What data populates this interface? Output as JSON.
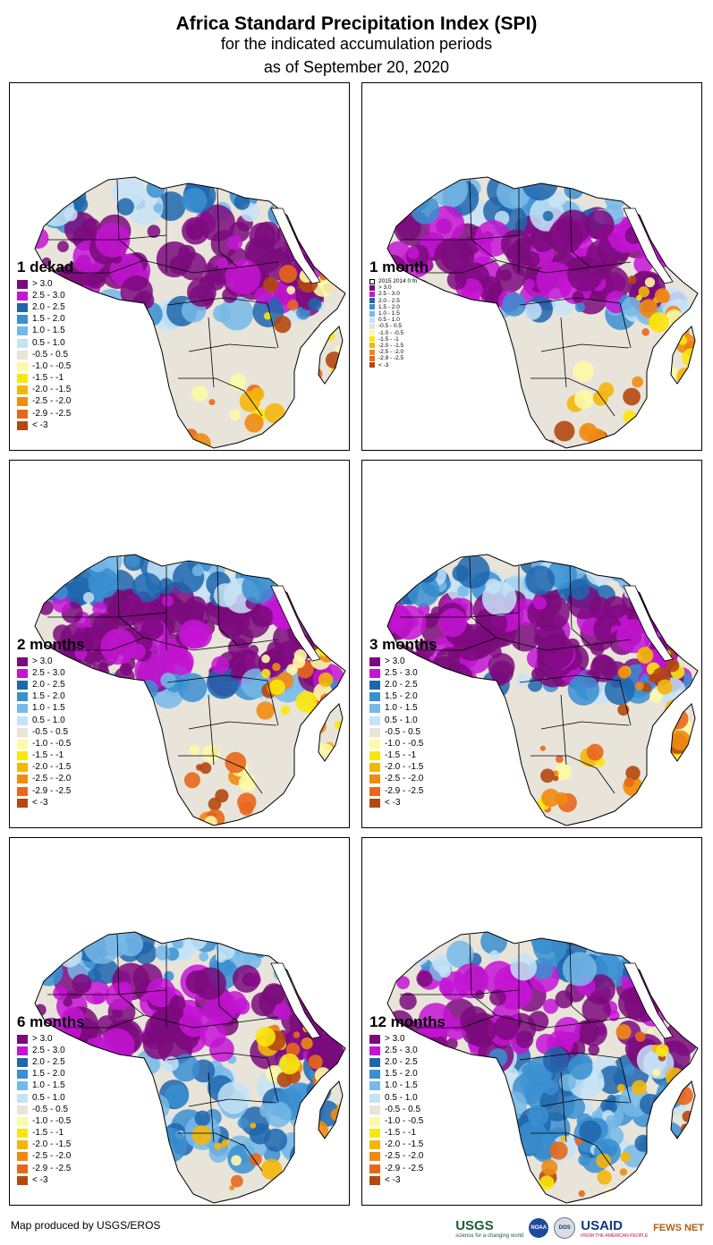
{
  "header": {
    "title": "Africa Standard Precipitation Index (SPI)",
    "subtitle": "for the indicated accumulation periods",
    "date_line": "as of September 20, 2020"
  },
  "colors": {
    "gt3": "#7b0a7c",
    "c25_30": "#c414d4",
    "c20_25": "#1f66ad",
    "c15_20": "#3a8fd0",
    "c10_15": "#76b8e8",
    "c05_10": "#c5e3f6",
    "neutral": "#e8e4da",
    "m05_10": "#fdf9a6",
    "m10_15": "#f9e60e",
    "m15_20": "#f3b60b",
    "m20_25": "#f08b12",
    "m25_29": "#e8671c",
    "lt3": "#b4480f",
    "ocean": "#ffffff",
    "border": "#000000"
  },
  "legend_entries": [
    {
      "label": "> 3.0",
      "color": "#7b0a7c"
    },
    {
      "label": "2.5 - 3.0",
      "color": "#c414d4"
    },
    {
      "label": "2.0 - 2.5",
      "color": "#1f66ad"
    },
    {
      "label": "1.5 - 2.0",
      "color": "#3a8fd0"
    },
    {
      "label": "1.0 - 1.5",
      "color": "#76b8e8"
    },
    {
      "label": "0.5 - 1.0",
      "color": "#c5e3f6"
    },
    {
      "label": "-0.5 - 0.5",
      "color": "#e8e4da"
    },
    {
      "label": "-1.0 - -0.5",
      "color": "#fdf9a6"
    },
    {
      "label": "-1.5 - -1",
      "color": "#f9e60e"
    },
    {
      "label": "-2.0 - -1.5",
      "color": "#f3b60b"
    },
    {
      "label": "-2.5 - -2.0",
      "color": "#f08b12"
    },
    {
      "label": "-2.9 - -2.5",
      "color": "#e8671c"
    },
    {
      "label": "< -3",
      "color": "#b4480f"
    }
  ],
  "panels": [
    {
      "id": "1dekad",
      "label": "1 dekad",
      "wet": 0.32,
      "dry": 0.05
    },
    {
      "id": "1month",
      "label": "1 month",
      "wet": 0.5,
      "dry": 0.1,
      "extra_legend": "2015 2014 0 fn"
    },
    {
      "id": "2months",
      "label": "2 months",
      "wet": 0.62,
      "dry": 0.15
    },
    {
      "id": "3months",
      "label": "3 months",
      "wet": 0.66,
      "dry": 0.15
    },
    {
      "id": "6months",
      "label": "6 months",
      "wet": 0.82,
      "dry": 0.1
    },
    {
      "id": "12months",
      "label": "12 months",
      "wet": 0.88,
      "dry": 0.05
    }
  ],
  "footer": {
    "credit": "Map produced by USGS/EROS",
    "logos": {
      "usgs": "USGS",
      "usgs_tag": "science for a changing world",
      "noaa": "NOAA",
      "dos": "DOS",
      "usaid": "USAID",
      "usaid_tag": "FROM THE AMERICAN PEOPLE",
      "fews": "FEWS NET"
    }
  }
}
